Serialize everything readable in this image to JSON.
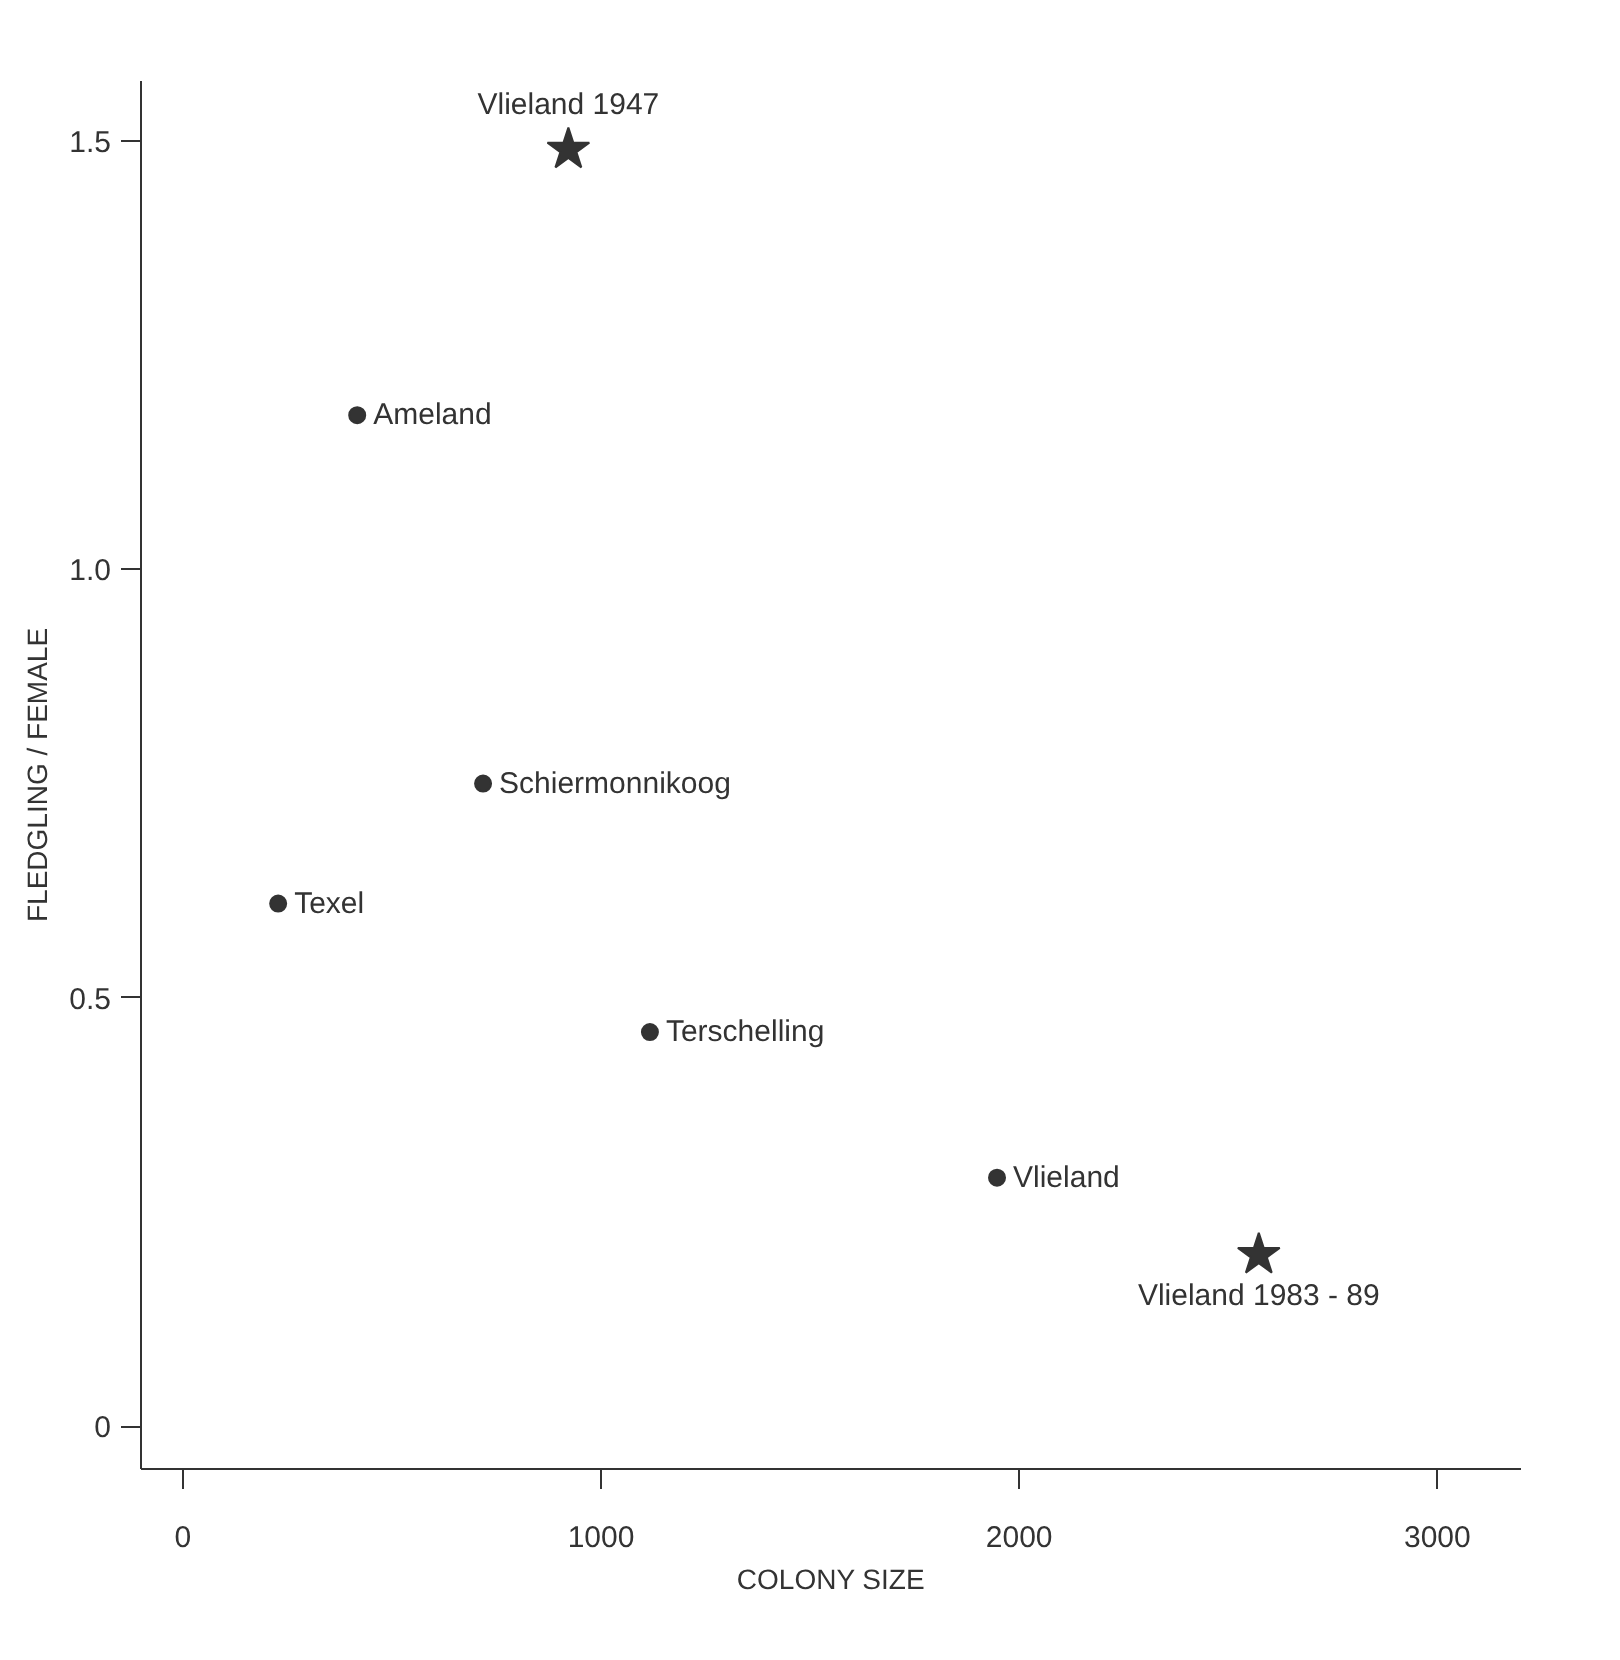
{
  "chart_data": {
    "type": "scatter",
    "xlabel": "COLONY SIZE",
    "ylabel": "FLEDGLING / FEMALE",
    "xlim": [
      -100,
      3200
    ],
    "ylim": [
      -0.05,
      1.57
    ],
    "xticks": [
      0,
      1000,
      2000,
      3000
    ],
    "yticks": [
      {
        "value": 0,
        "label": "0"
      },
      {
        "value": 0.5,
        "label": "0.5"
      },
      {
        "value": 1,
        "label": "1.0"
      },
      {
        "value": 1.5,
        "label": "1.5"
      }
    ],
    "grid": false,
    "series": [
      {
        "color": "#333333",
        "marker": "circle",
        "x": [
          417,
          718,
          228,
          1117,
          1947
        ],
        "values": [
          1.18,
          0.75,
          0.61,
          0.46,
          0.29
        ]
      },
      {
        "color": "#333333",
        "marker": "star",
        "x": [
          922,
          2573
        ],
        "values": [
          1.49,
          0.2
        ]
      }
    ],
    "annotations": [
      {
        "text": "Ameland",
        "x": 417,
        "y": 1.18
      },
      {
        "text": "Schiermonnikoog",
        "x": 718,
        "y": 0.75
      },
      {
        "text": "Texel",
        "x": 228,
        "y": 0.61
      },
      {
        "text": "Terschelling",
        "x": 1117,
        "y": 0.46
      },
      {
        "text": "Vlieland",
        "x": 1947,
        "y": 0.29
      },
      {
        "text": "Vlieland 1947",
        "x": 922,
        "y": 1.49
      },
      {
        "text": "Vlieland 1983 - 89",
        "x": 2573,
        "y": 0.2
      }
    ]
  }
}
